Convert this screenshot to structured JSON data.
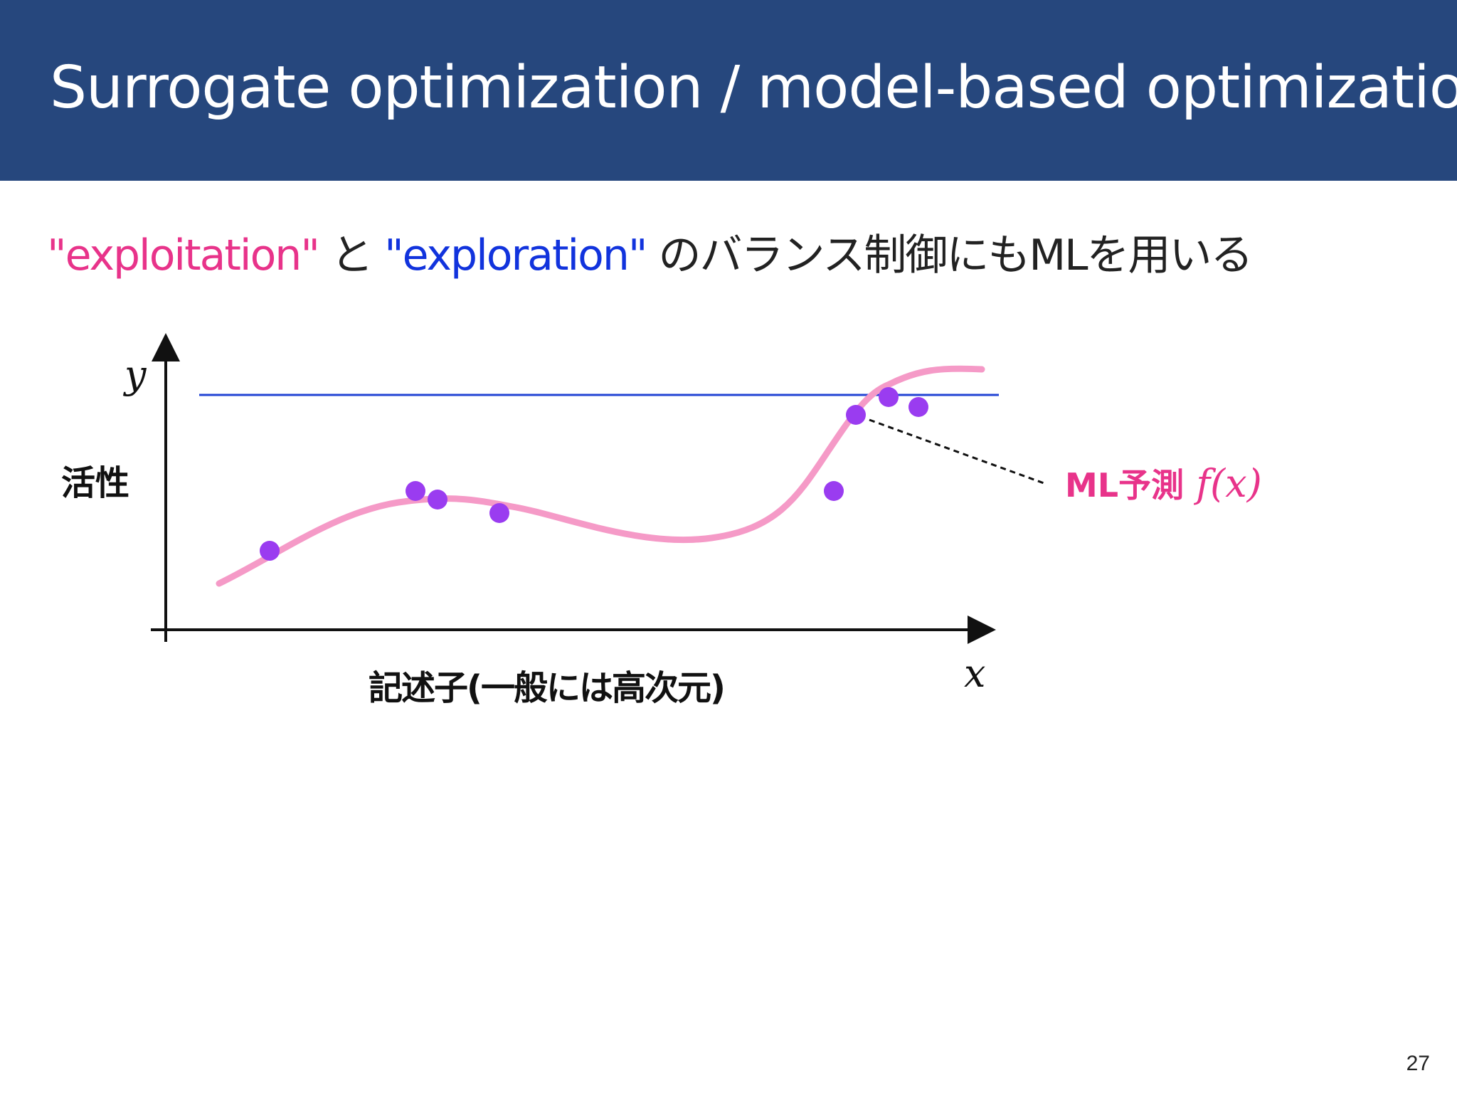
{
  "slide": {
    "title": "Surrogate optimization / model-based optimization",
    "subtitle": {
      "exploitation": "\"exploitation\"",
      "connector": " と ",
      "exploration": "\"exploration\"",
      "rest": " のバランス制御にもMLを用いる"
    },
    "page_number": "27"
  },
  "figure": {
    "y_symbol": "y",
    "x_symbol": "x",
    "y_label": "活性",
    "x_label": "記述子(一般には高次元)",
    "prediction_label": "ML予測",
    "prediction_formula": "f(x)",
    "colors": {
      "curve": "#f59ac7",
      "points": "#9a3cf0",
      "threshold": "#2243d4",
      "label": "#e8338a",
      "header": "#26477d"
    }
  }
}
